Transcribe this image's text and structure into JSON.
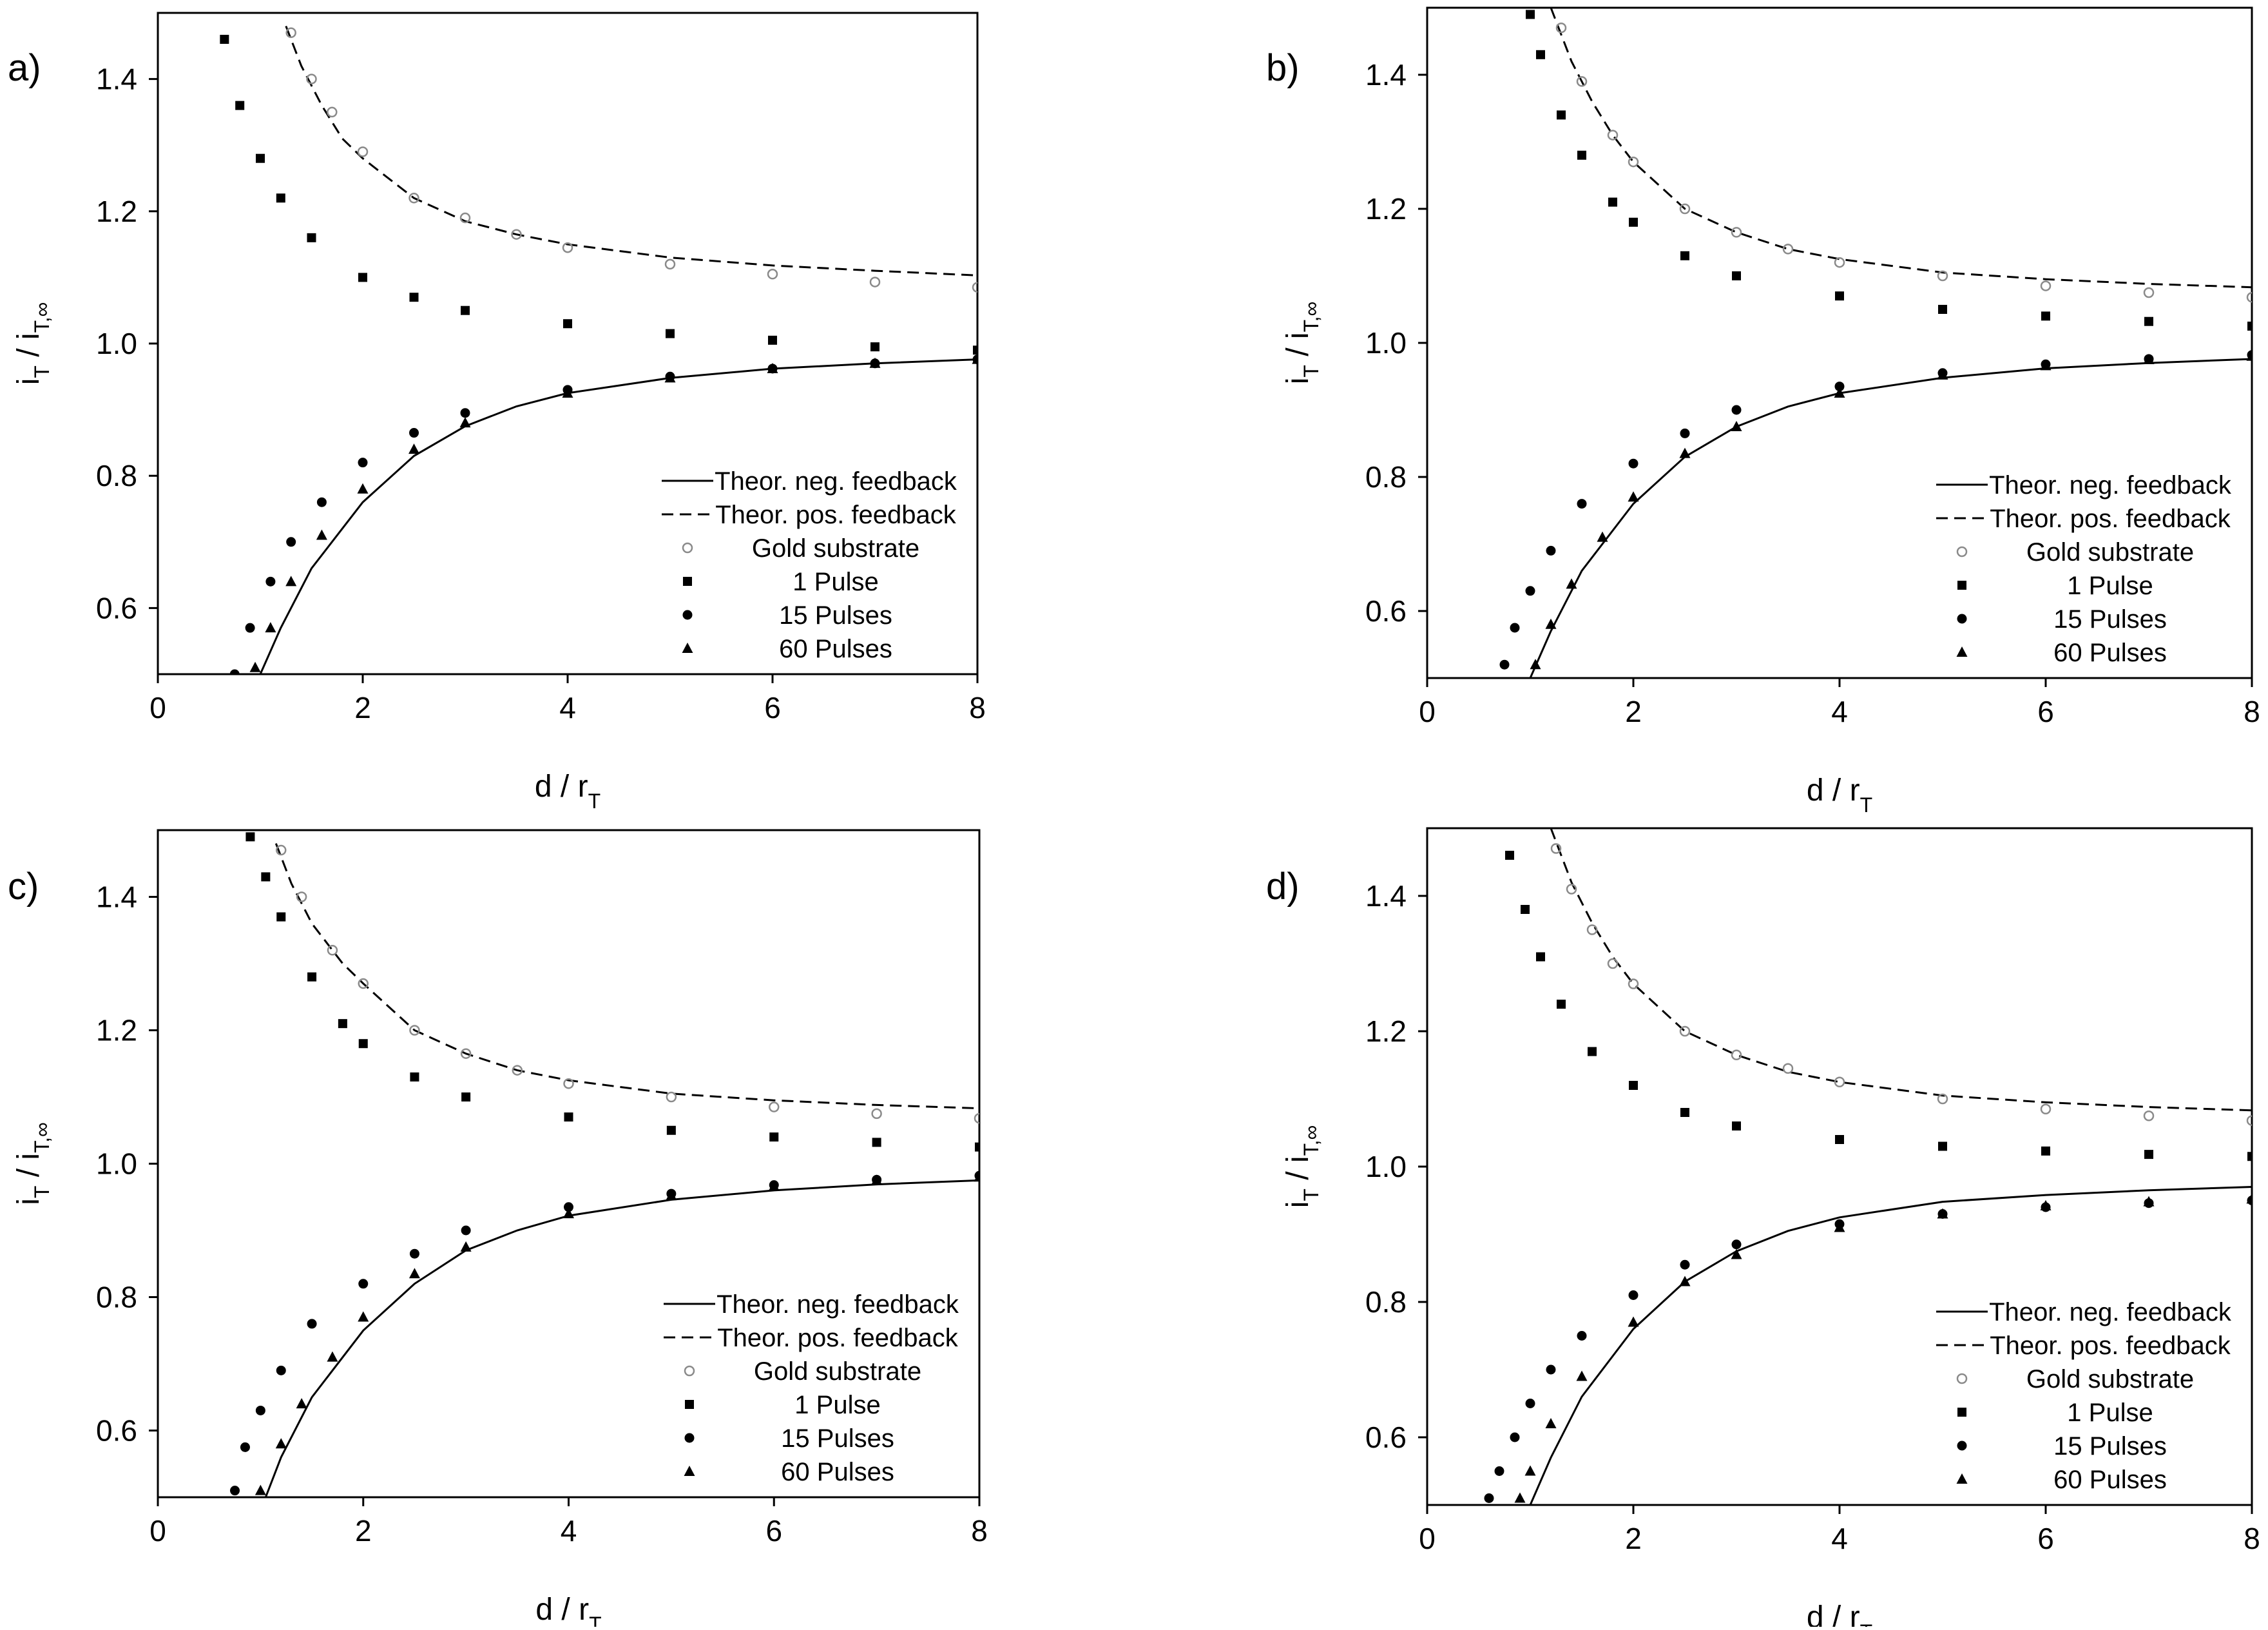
{
  "figure": {
    "colors": {
      "axis": "#000000",
      "marker": "#000000",
      "gold": "#8a8a8a",
      "neg": "#000000",
      "pos": "#000000"
    }
  },
  "chart_data": [
    {
      "panel_label": "a)",
      "type": "scatter",
      "xlabel": {
        "main": "d / r",
        "sub": "T"
      },
      "ylabel": {
        "i": "i",
        "sub1": "T",
        "slash": " / i",
        "sub2": "T,∞"
      },
      "xlim": [
        0,
        8
      ],
      "ylim": [
        0.5,
        1.5
      ],
      "xticks": [
        0,
        2,
        4,
        6,
        8
      ],
      "yticks": [
        0.6,
        0.8,
        1.0,
        1.2,
        1.4
      ],
      "legend_position": "bottom-right",
      "legend": [
        "Theor. neg. feedback",
        "Theor. pos. feedback",
        "Gold substrate",
        "1 Pulse",
        "15 Pulses",
        "60 Pulses"
      ],
      "series": [
        {
          "name": "Theor. neg. feedback",
          "x": [
            1.0,
            1.2,
            1.5,
            2,
            2.5,
            3,
            3.5,
            4,
            5,
            6,
            7,
            8
          ],
          "y": [
            0.5,
            0.57,
            0.66,
            0.76,
            0.83,
            0.875,
            0.905,
            0.925,
            0.948,
            0.962,
            0.97,
            0.976
          ]
        },
        {
          "name": "Theor. pos. feedback",
          "x": [
            1.25,
            1.4,
            1.6,
            1.8,
            2,
            2.5,
            3,
            3.5,
            4,
            5,
            6,
            7,
            8
          ],
          "y": [
            1.48,
            1.42,
            1.36,
            1.31,
            1.28,
            1.22,
            1.185,
            1.165,
            1.15,
            1.13,
            1.118,
            1.11,
            1.103
          ]
        },
        {
          "name": "Gold substrate",
          "x": [
            1.3,
            1.5,
            1.7,
            2,
            2.5,
            3,
            3.5,
            4,
            5,
            6,
            7,
            8
          ],
          "y": [
            1.47,
            1.4,
            1.35,
            1.29,
            1.22,
            1.19,
            1.165,
            1.145,
            1.12,
            1.105,
            1.093,
            1.085
          ]
        },
        {
          "name": "1 Pulse",
          "x": [
            0.65,
            0.8,
            1.0,
            1.2,
            1.5,
            2,
            2.5,
            3,
            4,
            5,
            6,
            7,
            8
          ],
          "y": [
            1.46,
            1.36,
            1.28,
            1.22,
            1.16,
            1.1,
            1.07,
            1.05,
            1.03,
            1.015,
            1.005,
            0.995,
            0.99
          ]
        },
        {
          "name": "15 Pulses",
          "x": [
            0.75,
            0.9,
            1.1,
            1.3,
            1.6,
            2,
            2.5,
            3,
            4,
            5,
            6,
            7,
            8
          ],
          "y": [
            0.5,
            0.57,
            0.64,
            0.7,
            0.76,
            0.82,
            0.865,
            0.895,
            0.93,
            0.95,
            0.962,
            0.97,
            0.976
          ]
        },
        {
          "name": "60 Pulses",
          "x": [
            0.95,
            1.1,
            1.3,
            1.6,
            2,
            2.5,
            3,
            4,
            5,
            6,
            7,
            8
          ],
          "y": [
            0.51,
            0.57,
            0.64,
            0.71,
            0.78,
            0.84,
            0.88,
            0.925,
            0.948,
            0.962,
            0.97,
            0.976
          ]
        }
      ]
    },
    {
      "panel_label": "b)",
      "type": "scatter",
      "xlabel": {
        "main": "d / r",
        "sub": "T"
      },
      "ylabel": {
        "i": "i",
        "sub1": "T",
        "slash": " / i",
        "sub2": "T,∞"
      },
      "xlim": [
        0,
        8
      ],
      "ylim": [
        0.5,
        1.5
      ],
      "xticks": [
        0,
        2,
        4,
        6,
        8
      ],
      "yticks": [
        0.6,
        0.8,
        1.0,
        1.2,
        1.4
      ],
      "legend_position": "bottom-right",
      "legend": [
        "Theor. neg. feedback",
        "Theor. pos. feedback",
        "Gold substrate",
        "1 Pulse",
        "15 Pulses",
        "60 Pulses"
      ],
      "series": [
        {
          "name": "Theor. neg. feedback",
          "x": [
            1.0,
            1.2,
            1.5,
            2,
            2.5,
            3,
            3.5,
            4,
            5,
            6,
            7,
            8
          ],
          "y": [
            0.5,
            0.57,
            0.66,
            0.76,
            0.83,
            0.875,
            0.905,
            0.925,
            0.948,
            0.962,
            0.97,
            0.976
          ]
        },
        {
          "name": "Theor. pos. feedback",
          "x": [
            1.2,
            1.4,
            1.6,
            1.8,
            2,
            2.5,
            3,
            3.5,
            4,
            5,
            6,
            7,
            8
          ],
          "y": [
            1.5,
            1.42,
            1.36,
            1.31,
            1.27,
            1.2,
            1.165,
            1.14,
            1.125,
            1.105,
            1.095,
            1.088,
            1.083
          ]
        },
        {
          "name": "Gold substrate",
          "x": [
            1.3,
            1.5,
            1.8,
            2,
            2.5,
            3,
            3.5,
            4,
            5,
            6,
            7,
            8
          ],
          "y": [
            1.47,
            1.39,
            1.31,
            1.27,
            1.2,
            1.165,
            1.14,
            1.12,
            1.1,
            1.085,
            1.075,
            1.068
          ]
        },
        {
          "name": "1 Pulse",
          "x": [
            1.0,
            1.1,
            1.3,
            1.5,
            1.8,
            2,
            2.5,
            3,
            4,
            5,
            6,
            7,
            8
          ],
          "y": [
            1.49,
            1.43,
            1.34,
            1.28,
            1.21,
            1.18,
            1.13,
            1.1,
            1.07,
            1.05,
            1.04,
            1.032,
            1.025
          ]
        },
        {
          "name": "15 Pulses",
          "x": [
            0.75,
            0.85,
            1.0,
            1.2,
            1.5,
            2,
            2.5,
            3,
            4,
            5,
            6,
            7,
            8
          ],
          "y": [
            0.52,
            0.575,
            0.63,
            0.69,
            0.76,
            0.82,
            0.865,
            0.9,
            0.935,
            0.955,
            0.968,
            0.976,
            0.982
          ]
        },
        {
          "name": "60 Pulses",
          "x": [
            1.05,
            1.2,
            1.4,
            1.7,
            2,
            2.5,
            3,
            4,
            5,
            6,
            7,
            8
          ],
          "y": [
            0.52,
            0.58,
            0.64,
            0.71,
            0.77,
            0.835,
            0.875,
            0.925,
            0.952,
            0.966,
            0.975,
            0.98
          ]
        }
      ]
    },
    {
      "panel_label": "c)",
      "type": "scatter",
      "xlabel": {
        "main": "d / r",
        "sub": "T"
      },
      "ylabel": {
        "i": "i",
        "sub1": "T",
        "slash": " / i",
        "sub2": "T,∞"
      },
      "xlim": [
        0,
        8
      ],
      "ylim": [
        0.5,
        1.5
      ],
      "xticks": [
        0,
        2,
        4,
        6,
        8
      ],
      "yticks": [
        0.6,
        0.8,
        1.0,
        1.2,
        1.4
      ],
      "legend_position": "bottom-right",
      "legend": [
        "Theor. neg. feedback",
        "Theor. pos. feedback",
        "Gold substrate",
        "1 Pulse",
        "15 Pulses",
        "60 Pulses"
      ],
      "series": [
        {
          "name": "Theor. neg. feedback",
          "x": [
            1.05,
            1.2,
            1.5,
            2,
            2.5,
            3,
            3.5,
            4,
            5,
            6,
            7,
            8
          ],
          "y": [
            0.5,
            0.56,
            0.65,
            0.75,
            0.82,
            0.87,
            0.9,
            0.922,
            0.946,
            0.96,
            0.969,
            0.975
          ]
        },
        {
          "name": "Theor. pos. feedback",
          "x": [
            1.15,
            1.3,
            1.5,
            1.8,
            2,
            2.5,
            3,
            3.5,
            4,
            5,
            6,
            7,
            8
          ],
          "y": [
            1.48,
            1.42,
            1.36,
            1.3,
            1.27,
            1.2,
            1.165,
            1.14,
            1.125,
            1.105,
            1.095,
            1.088,
            1.083
          ]
        },
        {
          "name": "Gold substrate",
          "x": [
            1.2,
            1.4,
            1.7,
            2,
            2.5,
            3,
            3.5,
            4,
            5,
            6,
            7,
            8
          ],
          "y": [
            1.47,
            1.4,
            1.32,
            1.27,
            1.2,
            1.165,
            1.14,
            1.12,
            1.1,
            1.085,
            1.075,
            1.068
          ]
        },
        {
          "name": "1 Pulse",
          "x": [
            0.9,
            1.05,
            1.2,
            1.5,
            1.8,
            2,
            2.5,
            3,
            4,
            5,
            6,
            7,
            8
          ],
          "y": [
            1.49,
            1.43,
            1.37,
            1.28,
            1.21,
            1.18,
            1.13,
            1.1,
            1.07,
            1.05,
            1.04,
            1.032,
            1.025
          ]
        },
        {
          "name": "15 Pulses",
          "x": [
            0.75,
            0.85,
            1.0,
            1.2,
            1.5,
            2,
            2.5,
            3,
            4,
            5,
            6,
            7,
            8
          ],
          "y": [
            0.51,
            0.575,
            0.63,
            0.69,
            0.76,
            0.82,
            0.865,
            0.9,
            0.935,
            0.955,
            0.968,
            0.976,
            0.982
          ]
        },
        {
          "name": "60 Pulses",
          "x": [
            1.0,
            1.2,
            1.4,
            1.7,
            2,
            2.5,
            3,
            4,
            5,
            6,
            7,
            8
          ],
          "y": [
            0.51,
            0.58,
            0.64,
            0.71,
            0.77,
            0.835,
            0.875,
            0.925,
            0.952,
            0.966,
            0.975,
            0.98
          ]
        }
      ]
    },
    {
      "panel_label": "d)",
      "type": "scatter",
      "xlabel": {
        "main": "d / r",
        "sub": "T"
      },
      "ylabel": {
        "i": "i",
        "sub1": "T",
        "slash": " / i",
        "sub2": "T,∞"
      },
      "xlim": [
        0,
        8
      ],
      "ylim": [
        0.5,
        1.5
      ],
      "xticks": [
        0,
        2,
        4,
        6,
        8
      ],
      "yticks": [
        0.6,
        0.8,
        1.0,
        1.2,
        1.4
      ],
      "legend_position": "bottom-right",
      "legend": [
        "Theor. neg. feedback",
        "Theor. pos. feedback",
        "Gold substrate",
        "1 Pulse",
        "15 Pulses",
        "60 Pulses"
      ],
      "series": [
        {
          "name": "Theor. neg. feedback",
          "x": [
            1.0,
            1.2,
            1.5,
            2,
            2.5,
            3,
            3.5,
            4,
            5,
            6,
            7,
            8
          ],
          "y": [
            0.5,
            0.57,
            0.66,
            0.76,
            0.83,
            0.875,
            0.905,
            0.925,
            0.948,
            0.958,
            0.965,
            0.97
          ]
        },
        {
          "name": "Theor. pos. feedback",
          "x": [
            1.2,
            1.4,
            1.6,
            1.8,
            2,
            2.5,
            3,
            3.5,
            4,
            5,
            6,
            7,
            8
          ],
          "y": [
            1.5,
            1.42,
            1.36,
            1.31,
            1.27,
            1.2,
            1.165,
            1.14,
            1.125,
            1.105,
            1.095,
            1.088,
            1.083
          ]
        },
        {
          "name": "Gold substrate",
          "x": [
            1.25,
            1.4,
            1.6,
            1.8,
            2,
            2.5,
            3,
            3.5,
            4,
            5,
            6,
            7,
            8
          ],
          "y": [
            1.47,
            1.41,
            1.35,
            1.3,
            1.27,
            1.2,
            1.165,
            1.145,
            1.125,
            1.1,
            1.085,
            1.075,
            1.068
          ]
        },
        {
          "name": "1 Pulse",
          "x": [
            0.8,
            0.95,
            1.1,
            1.3,
            1.6,
            2,
            2.5,
            3,
            4,
            5,
            6,
            7,
            8
          ],
          "y": [
            1.46,
            1.38,
            1.31,
            1.24,
            1.17,
            1.12,
            1.08,
            1.06,
            1.04,
            1.03,
            1.023,
            1.018,
            1.015
          ]
        },
        {
          "name": "15 Pulses",
          "x": [
            0.6,
            0.7,
            0.85,
            1.0,
            1.2,
            1.5,
            2,
            2.5,
            3,
            4,
            5,
            6,
            7,
            8
          ],
          "y": [
            0.51,
            0.55,
            0.6,
            0.65,
            0.7,
            0.75,
            0.81,
            0.855,
            0.885,
            0.915,
            0.93,
            0.94,
            0.946,
            0.95
          ]
        },
        {
          "name": "60 Pulses",
          "x": [
            0.9,
            1.0,
            1.2,
            1.5,
            2,
            2.5,
            3,
            4,
            5,
            6,
            7,
            8
          ],
          "y": [
            0.51,
            0.55,
            0.62,
            0.69,
            0.77,
            0.83,
            0.87,
            0.91,
            0.93,
            0.942,
            0.948,
            0.952
          ]
        }
      ]
    }
  ]
}
